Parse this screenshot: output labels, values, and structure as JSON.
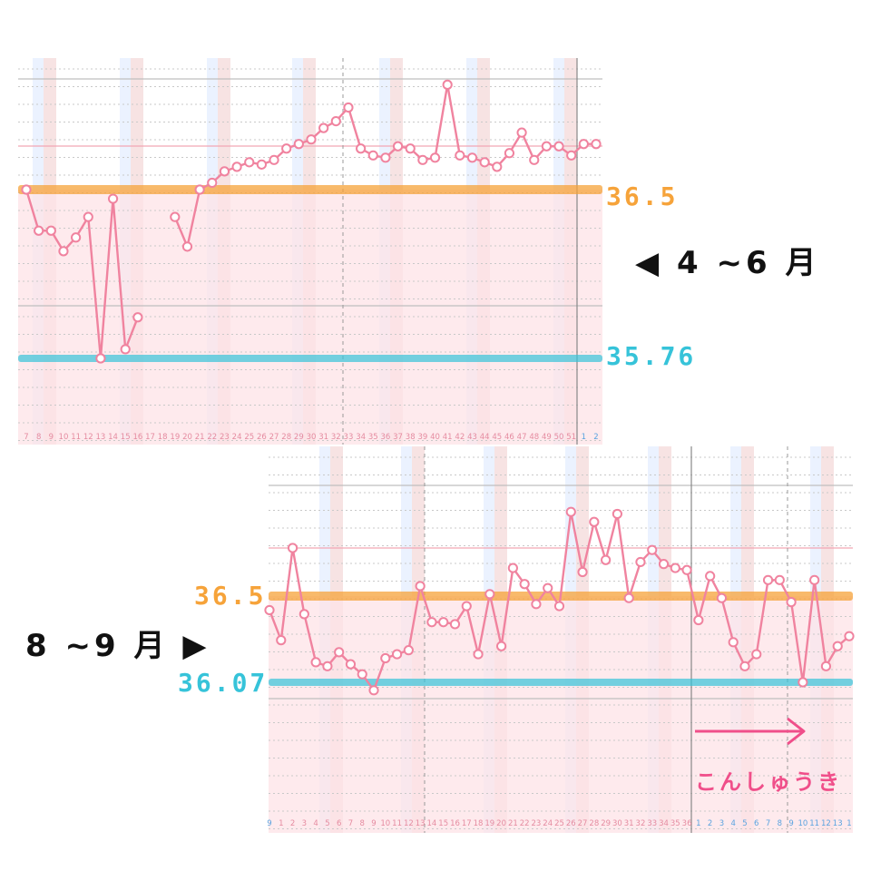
{
  "chart_data": [
    {
      "type": "line",
      "x": [
        "7",
        "8",
        "9",
        "10",
        "11",
        "12",
        "13",
        "14",
        "15",
        "16",
        "17",
        "18",
        "19",
        "20",
        "21",
        "22",
        "23",
        "24",
        "25",
        "26",
        "27",
        "28",
        "29",
        "30",
        "31",
        "32",
        "33",
        "34",
        "35",
        "36",
        "37",
        "38",
        "39",
        "40",
        "41",
        "42",
        "43",
        "44",
        "45",
        "46",
        "47",
        "48",
        "49",
        "50",
        "51",
        "1",
        "2"
      ],
      "y": [
        36.5,
        36.32,
        36.32,
        36.23,
        36.29,
        36.38,
        35.76,
        36.46,
        35.8,
        35.94,
        null,
        null,
        36.38,
        36.25,
        36.5,
        36.53,
        36.58,
        36.6,
        36.62,
        36.61,
        36.63,
        36.68,
        36.7,
        36.72,
        36.77,
        36.8,
        36.86,
        36.68,
        36.65,
        36.64,
        36.69,
        36.68,
        36.63,
        36.64,
        36.96,
        36.65,
        36.64,
        36.62,
        36.6,
        36.66,
        36.75,
        36.63,
        36.69,
        36.69,
        36.65,
        36.7,
        36.7
      ],
      "high_line": {
        "value": "36.5",
        "color": "#f6a33a"
      },
      "low_line": {
        "value": "35.76",
        "color": "#36c3d9"
      },
      "period": "◀ 4 ~6 月",
      "period_color": "#111111",
      "line_color": "#f0839f"
    },
    {
      "type": "line",
      "x": [
        "9",
        "1",
        "2",
        "3",
        "4",
        "5",
        "6",
        "7",
        "8",
        "9",
        "10",
        "11",
        "12",
        "13",
        "14",
        "15",
        "16",
        "17",
        "18",
        "19",
        "20",
        "21",
        "22",
        "23",
        "24",
        "25",
        "26",
        "27",
        "28",
        "29",
        "30",
        "31",
        "32",
        "33",
        "34",
        "35",
        "36",
        "1",
        "2",
        "3",
        "4",
        "5",
        "6",
        "7",
        "8",
        "9",
        "10",
        "11",
        "12",
        "13",
        "1"
      ],
      "y": [
        36.43,
        36.28,
        36.74,
        36.41,
        36.17,
        36.15,
        36.22,
        36.16,
        36.11,
        36.03,
        36.19,
        36.21,
        36.23,
        36.55,
        36.37,
        36.37,
        36.36,
        36.45,
        36.21,
        36.51,
        36.25,
        36.64,
        36.56,
        36.46,
        36.54,
        36.45,
        36.92,
        36.62,
        36.87,
        36.68,
        36.91,
        36.49,
        36.67,
        36.73,
        36.66,
        36.64,
        36.63,
        36.38,
        36.6,
        36.49,
        36.27,
        36.15,
        36.21,
        36.58,
        36.58,
        36.47,
        36.07,
        36.58,
        36.15,
        36.25,
        36.3
      ],
      "high_line": {
        "value": "36.5",
        "color": "#f6a33a"
      },
      "low_line": {
        "value": "36.07",
        "color": "#36c3d9"
      },
      "period": "8 ~9 月 ▶",
      "period_color": "#111111",
      "note": "こんしゅうき",
      "note_color": "#f04f8a",
      "line_color": "#f0839f"
    }
  ]
}
